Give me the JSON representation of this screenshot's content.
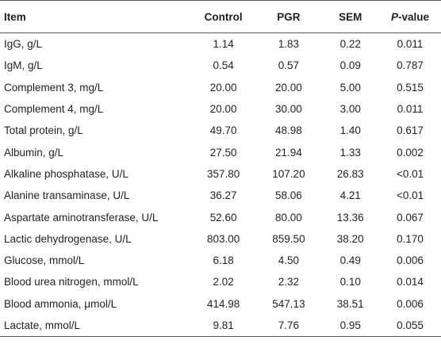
{
  "table": {
    "header": [
      "Item",
      "Control",
      "PGR",
      "SEM",
      "P-value"
    ],
    "rows": [
      [
        "IgG, g/L",
        "1.14",
        "1.83",
        "0.22",
        "0.011"
      ],
      [
        "IgM, g/L",
        "0.54",
        "0.57",
        "0.09",
        "0.787"
      ],
      [
        "Complement 3, mg/L",
        "20.00",
        "20.00",
        "5.00",
        "0.515"
      ],
      [
        "Complement 4, mg/L",
        "20.00",
        "30.00",
        "3.00",
        "0.011"
      ],
      [
        "Total protein, g/L",
        "49.70",
        "48.98",
        "1.40",
        "0.617"
      ],
      [
        "Albumin, g/L",
        "27.50",
        "21.94",
        "1.33",
        "0.002"
      ],
      [
        "Alkaline phosphatase, U/L",
        "357.80",
        "107.20",
        "26.83",
        "<0.01"
      ],
      [
        "Alanine transaminase, U/L",
        "36.27",
        "58.06",
        "4.21",
        "<0.01"
      ],
      [
        "Aspartate aminotransferase, U/L",
        "52.60",
        "80.00",
        "13.36",
        "0.067"
      ],
      [
        "Lactic dehydrogenase, U/L",
        "803.00",
        "859.50",
        "38.20",
        "0.170"
      ],
      [
        "Glucose, mmol/L",
        "6.18",
        "4.50",
        "0.49",
        "0.006"
      ],
      [
        "Blood urea nitrogen, mmol/L",
        "2.02",
        "2.32",
        "0.10",
        "0.014"
      ],
      [
        "Blood ammonia, μmol/L",
        "414.98",
        "547.13",
        "38.51",
        "0.006"
      ],
      [
        "Lactate, mmol/L",
        "9.81",
        "7.76",
        "0.95",
        "0.055"
      ]
    ]
  }
}
